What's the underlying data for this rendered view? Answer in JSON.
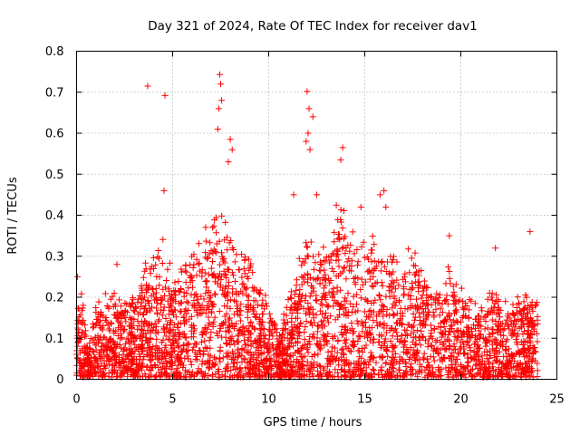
{
  "chart_data": {
    "type": "scatter",
    "title": "Day 321 of 2024, Rate Of TEC Index for receiver dav1",
    "xlabel": "GPS time / hours",
    "ylabel": "ROTI / TECUs",
    "xlim": [
      0,
      25
    ],
    "ylim": [
      0,
      0.8
    ],
    "x_ticks": [
      "0",
      "5",
      "10",
      "15",
      "20",
      "25"
    ],
    "y_ticks": [
      "0",
      "0.1",
      "0.2",
      "0.3",
      "0.4",
      "0.5",
      "0.6",
      "0.7",
      "0.8"
    ],
    "grid": true,
    "marker": "+",
    "color": "#ff0000",
    "series": [
      {
        "x": [
          3.7,
          4.6,
          7.45,
          7.5,
          7.55,
          7.4,
          7.35,
          12.0,
          12.1,
          12.3,
          12.05,
          12.15,
          11.95,
          8.0,
          8.1,
          7.9,
          13.85,
          13.75,
          4.55,
          15.8,
          16.0,
          16.1,
          19.4,
          21.8,
          23.6,
          0.05,
          2.1,
          14.8,
          11.3,
          12.5
        ],
        "y": [
          0.715,
          0.692,
          0.743,
          0.72,
          0.68,
          0.66,
          0.61,
          0.702,
          0.66,
          0.64,
          0.6,
          0.56,
          0.58,
          0.585,
          0.56,
          0.53,
          0.565,
          0.535,
          0.46,
          0.45,
          0.46,
          0.42,
          0.35,
          0.32,
          0.36,
          0.25,
          0.28,
          0.42,
          0.45,
          0.45
        ]
      }
    ]
  }
}
